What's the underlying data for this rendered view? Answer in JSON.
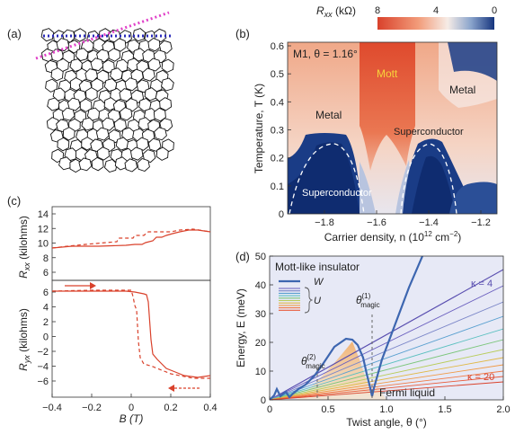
{
  "panel_labels": [
    "(a)",
    "(b)",
    "(c)",
    "(d)"
  ],
  "panel_b": {
    "annotation": "M1, θ = 1.16°",
    "colorbar_label_main": "R",
    "colorbar_label_sub": "xx",
    "colorbar_label_unit": " (kΩ)",
    "colorbar_ticks": [
      "8",
      "4",
      "0"
    ],
    "regions": {
      "metal_left": "Metal",
      "mott": "Mott",
      "metal_right": "Metal",
      "sc_left": "Superconductor",
      "sc_right": "Superconductor"
    },
    "ylabel": "Temperature, T (K)",
    "xlabel_main": "Carrier density, n (10",
    "xlabel_sup": "12",
    "xlabel_end": " cm",
    "xlabel_sup2": "−2",
    "xlabel_close": ")",
    "xticks": [
      "−1.8",
      "−1.6",
      "−1.4",
      "−1.2"
    ],
    "yticks": [
      "0",
      "0.1",
      "0.2",
      "0.3",
      "0.4",
      "0.5",
      "0.6"
    ]
  },
  "panel_c": {
    "top_ylabel_main": "R",
    "top_ylabel_sub": "xx",
    "top_ylabel_unit": " (kilohms)",
    "bot_ylabel_main": "R",
    "bot_ylabel_sub": "yx",
    "bot_ylabel_unit": " (kilohms)",
    "top_yticks": [
      "6",
      "8",
      "10",
      "12",
      "14"
    ],
    "bot_yticks": [
      "6",
      "4",
      "2",
      "0",
      "−2",
      "−4",
      "−6"
    ],
    "xticks": [
      "−0.4",
      "−0.2",
      "0",
      "0.2",
      "0.4"
    ],
    "xlabel": "B (T)"
  },
  "panel_d": {
    "legend_title": "Mott-like insulator",
    "legend_w": "W",
    "legend_u": "U",
    "kappa_top": "κ = 4",
    "kappa_bottom": "κ = 20",
    "theta_magic_1": "θ",
    "theta_magic_1_sup": "(1)",
    "theta_magic_1_sub": "magic",
    "theta_magic_2": "θ",
    "theta_magic_2_sup": "(2)",
    "theta_magic_2_sub": "magic",
    "fermi": "Fermi liquid",
    "ylabel": "Energy, E (meV)",
    "xlabel": "Twist angle, θ (°)",
    "yticks": [
      "0",
      "10",
      "20",
      "30",
      "40",
      "50"
    ],
    "xticks": [
      "0",
      "0.5",
      "1.0",
      "1.5",
      "2.0"
    ]
  },
  "colors": {
    "accent_red": "#d9412b",
    "deep_blue": "#16357e",
    "dot_magenta": "#e040c8",
    "dot_blue": "#2a2ab8"
  }
}
